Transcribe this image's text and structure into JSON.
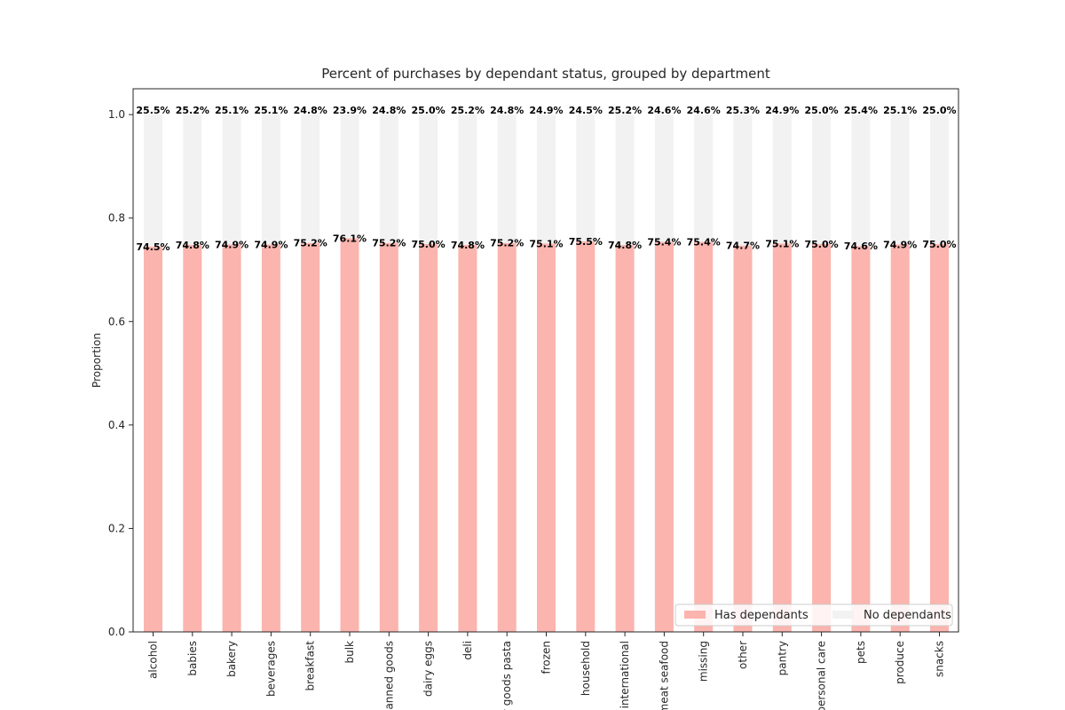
{
  "chart_data": {
    "type": "bar",
    "stacked": true,
    "title": "Percent of purchases by dependant status, grouped by department",
    "xlabel": "",
    "ylabel": "Proportion",
    "ylim": [
      0,
      1.05
    ],
    "yticks": [
      "0.0",
      "0.2",
      "0.4",
      "0.6",
      "0.8",
      "1.0"
    ],
    "categories": [
      "alcohol",
      "babies",
      "bakery",
      "beverages",
      "breakfast",
      "bulk",
      "canned goods",
      "dairy eggs",
      "deli",
      "dry goods pasta",
      "frozen",
      "household",
      "international",
      "meat seafood",
      "missing",
      "other",
      "pantry",
      "personal care",
      "pets",
      "produce",
      "snacks"
    ],
    "series": [
      {
        "name": "Has dependants",
        "color": "#fbb4ae",
        "values": [
          0.745,
          0.748,
          0.749,
          0.749,
          0.752,
          0.761,
          0.752,
          0.75,
          0.748,
          0.752,
          0.751,
          0.755,
          0.748,
          0.754,
          0.754,
          0.747,
          0.751,
          0.75,
          0.746,
          0.749,
          0.75
        ],
        "labels": [
          "74.5%",
          "74.8%",
          "74.9%",
          "74.9%",
          "75.2%",
          "76.1%",
          "75.2%",
          "75.0%",
          "74.8%",
          "75.2%",
          "75.1%",
          "75.5%",
          "74.8%",
          "75.4%",
          "75.4%",
          "74.7%",
          "75.1%",
          "75.0%",
          "74.6%",
          "74.9%",
          "75.0%"
        ]
      },
      {
        "name": "No dependants",
        "color": "#f2f2f2",
        "values": [
          0.255,
          0.252,
          0.251,
          0.251,
          0.248,
          0.239,
          0.248,
          0.25,
          0.252,
          0.248,
          0.249,
          0.245,
          0.252,
          0.246,
          0.246,
          0.253,
          0.249,
          0.25,
          0.254,
          0.251,
          0.25
        ],
        "labels": [
          "25.5%",
          "25.2%",
          "25.1%",
          "25.1%",
          "24.8%",
          "23.9%",
          "24.8%",
          "25.0%",
          "25.2%",
          "24.8%",
          "24.9%",
          "24.5%",
          "25.2%",
          "24.6%",
          "24.6%",
          "25.3%",
          "24.9%",
          "25.0%",
          "25.4%",
          "25.1%",
          "25.0%"
        ]
      }
    ],
    "legend_position": "lower-right",
    "grid": false
  }
}
